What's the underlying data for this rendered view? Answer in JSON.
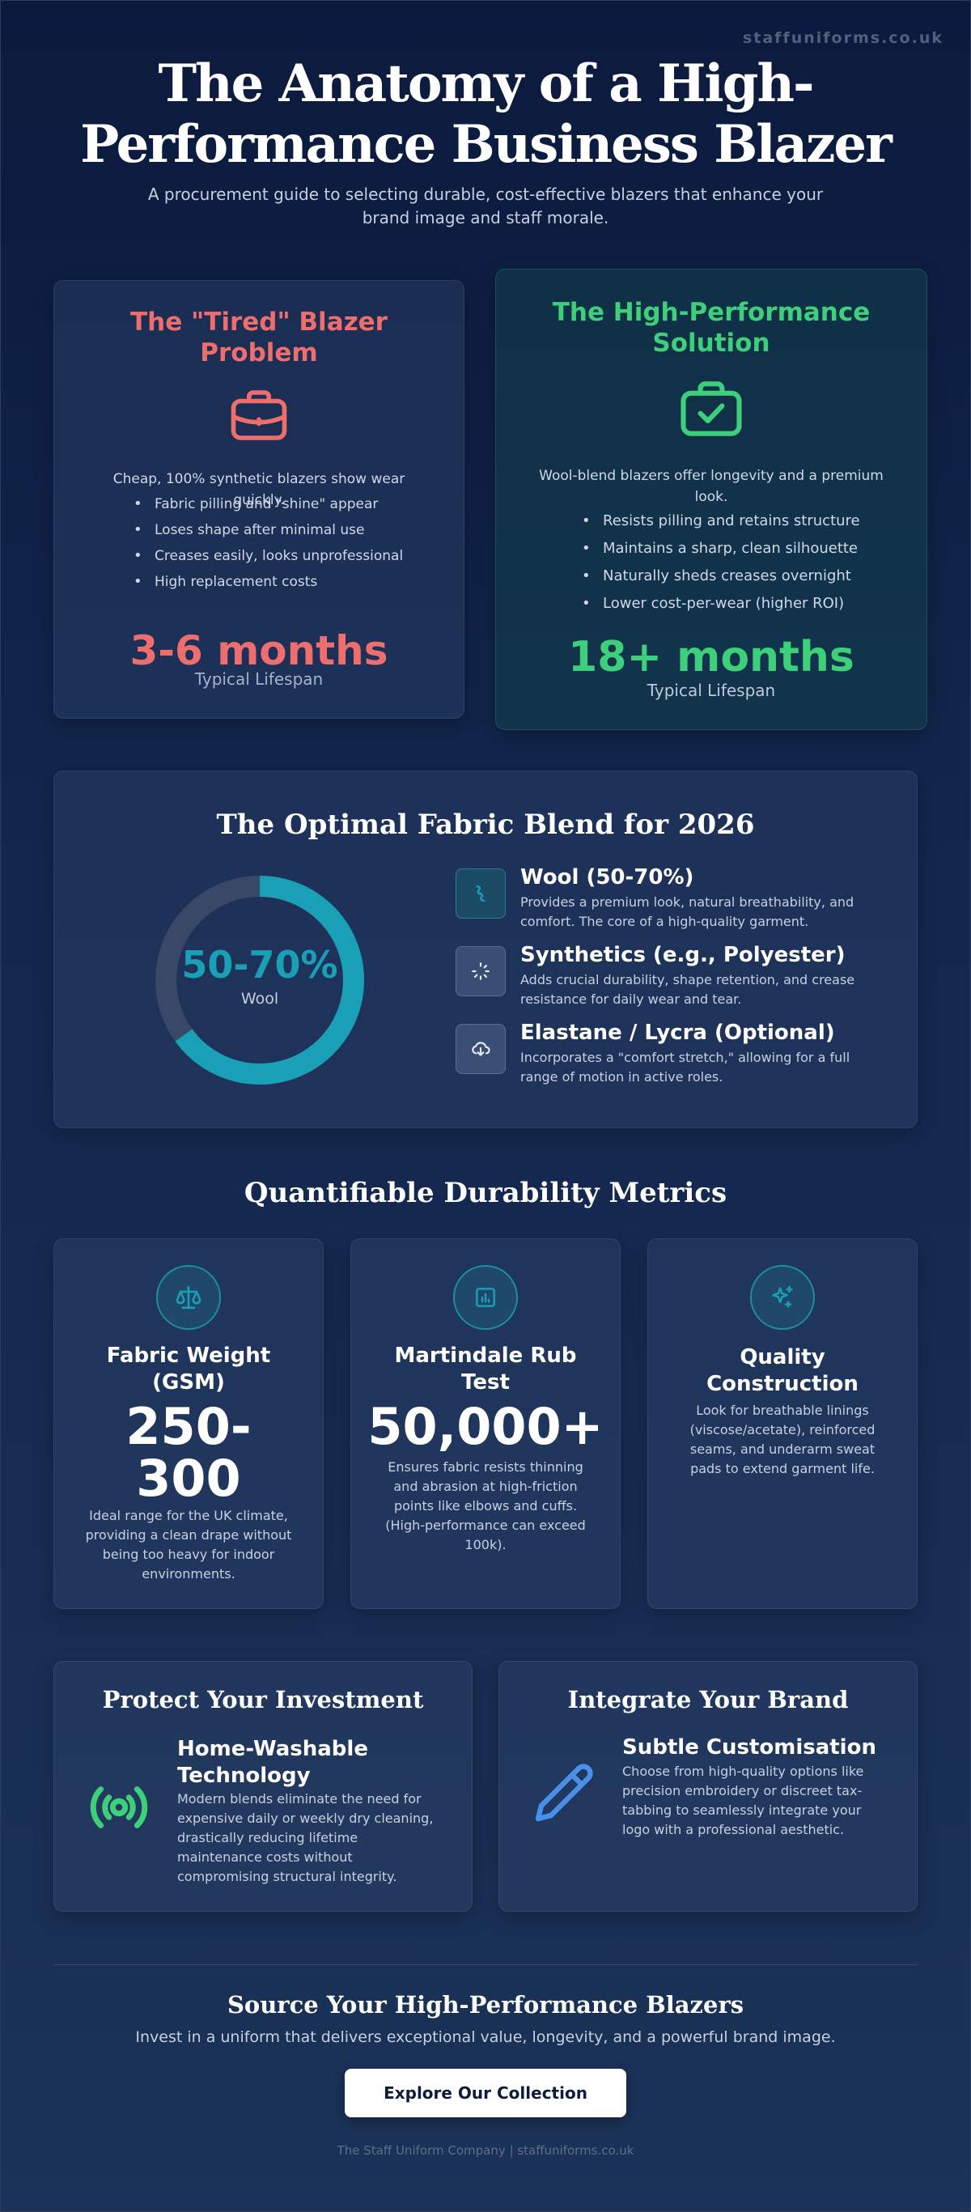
{
  "site_domain": "staffuniforms.co.uk",
  "header": {
    "title_line1": "The Anatomy of a High-",
    "title_line2": "Performance Business Blazer",
    "subtitle_line1": "A procurement guide to selecting durable, cost-effective blazers that enhance your",
    "subtitle_line2": "brand image and staff morale."
  },
  "comparison": {
    "problem": {
      "title_line1": "The \"Tired\" Blazer",
      "title_line2": "Problem",
      "icon": "briefcase-icon",
      "intro": "Cheap, 100% synthetic blazers show wear quickly.",
      "points": [
        "Fabric pilling and \"shine\" appear",
        "Loses shape after minimal use",
        "Creases easily, looks unprofessional",
        "High replacement costs"
      ],
      "stat": "3-6 months",
      "stat_label": "Typical Lifespan",
      "color": "#ee6e6e"
    },
    "solution": {
      "title_line1": "The High-Performance",
      "title_line2": "Solution",
      "icon": "briefcase-check-icon",
      "intro_line1": "Wool-blend blazers offer longevity and a premium",
      "intro_line2": "look.",
      "points": [
        "Resists pilling and retains structure",
        "Maintains a sharp, clean silhouette",
        "Naturally sheds creases overnight",
        "Lower cost-per-wear (higher ROI)"
      ],
      "stat": "18+ months",
      "stat_label": "Typical Lifespan",
      "color": "#3ecf7a"
    }
  },
  "fabric": {
    "title": "The Optimal Fabric Blend for 2026",
    "donut": {
      "value_label": "50-70%",
      "sub_label": "Wool",
      "fill_fraction": 0.65,
      "color": "#1aa0b6",
      "track_color": "#3a4868"
    },
    "items": [
      {
        "icon": "fiber-icon",
        "name": "Wool (50-70%)",
        "desc_line1": "Provides a premium look, natural breathability, and",
        "desc_line2": "comfort. The core of a high-quality garment."
      },
      {
        "icon": "loader-icon",
        "name": "Synthetics (e.g., Polyester)",
        "desc_line1": "Adds crucial durability, shape retention, and crease",
        "desc_line2": "resistance for daily wear and tear."
      },
      {
        "icon": "cloud-download-icon",
        "name": "Elastane / Lycra (Optional)",
        "desc_line1": "Incorporates a \"comfort stretch,\" allowing for a full",
        "desc_line2": "range of motion in active roles."
      }
    ]
  },
  "metrics": {
    "title": "Quantifiable Durability Metrics",
    "items": [
      {
        "icon": "scales-icon",
        "title_line1": "Fabric Weight",
        "title_line2": "(GSM)",
        "value_line1": "250-",
        "value_line2": "300",
        "desc_lines": [
          "Ideal range for the UK climate,",
          "providing a clean drape without",
          "being too heavy for indoor",
          "environments."
        ]
      },
      {
        "icon": "bar-chart-icon",
        "title_line1": "Martindale Rub",
        "title_line2": "Test",
        "value_line1": "50,000+",
        "desc_lines": [
          "Ensures fabric resists thinning",
          "and abrasion at high-friction",
          "points like elbows and cuffs.",
          "(High-performance can exceed",
          "100k)."
        ]
      },
      {
        "icon": "sparkles-icon",
        "title_line1": "Quality",
        "title_line2": "Construction",
        "desc_lines": [
          "Look for breathable linings",
          "(viscose/acetate), reinforced",
          "seams, and underarm sweat",
          "pads to extend garment life."
        ]
      }
    ]
  },
  "bottom": {
    "invest": {
      "title": "Protect Your Investment",
      "icon": "broadcast-icon",
      "head_line1": "Home-Washable",
      "head_line2": "Technology",
      "desc_lines": [
        "Modern blends eliminate the need for",
        "expensive daily or weekly dry cleaning,",
        "drastically reducing lifetime",
        "maintenance costs without",
        "compromising structural integrity."
      ]
    },
    "brand": {
      "title": "Integrate Your Brand",
      "icon": "pencil-icon",
      "head": "Subtle Customisation",
      "desc_lines": [
        "Choose from high-quality options like",
        "precision embroidery or discreet tax-",
        "tabbing to seamlessly integrate your",
        "logo with a professional aesthetic."
      ]
    }
  },
  "cta": {
    "title": "Source Your High-Performance Blazers",
    "subtitle": "Invest in a uniform that delivers exceptional value, longevity, and a powerful brand image.",
    "button": "Explore Our Collection"
  },
  "footer": "The Staff Uniform Company | staffuniforms.co.uk"
}
